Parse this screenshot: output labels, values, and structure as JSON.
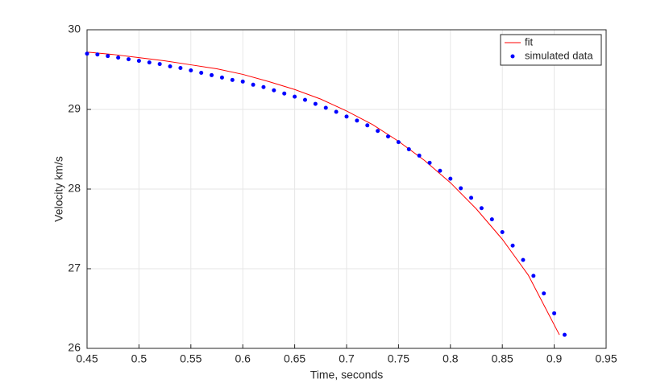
{
  "chart_data": {
    "type": "line-scatter",
    "xlabel": "Time, seconds",
    "ylabel": "Velocity km/s",
    "xlim": [
      0.45,
      0.95
    ],
    "ylim": [
      26,
      30
    ],
    "xticks": [
      0.45,
      0.5,
      0.55,
      0.6,
      0.65,
      0.7,
      0.75,
      0.8,
      0.85,
      0.9,
      0.95
    ],
    "yticks": [
      26,
      27,
      28,
      29,
      30
    ],
    "grid": true,
    "legend": "top-right",
    "series": [
      {
        "name": "fit",
        "kind": "line",
        "color": "#ff0000",
        "x": [
          0.45,
          0.475,
          0.5,
          0.525,
          0.55,
          0.575,
          0.6,
          0.625,
          0.65,
          0.675,
          0.7,
          0.725,
          0.75,
          0.775,
          0.8,
          0.825,
          0.85,
          0.875,
          0.905
        ],
        "values": [
          29.72,
          29.69,
          29.65,
          29.61,
          29.56,
          29.51,
          29.44,
          29.35,
          29.25,
          29.13,
          28.98,
          28.81,
          28.6,
          28.36,
          28.08,
          27.75,
          27.37,
          26.92,
          26.17
        ]
      },
      {
        "name": "simulated data",
        "kind": "scatter",
        "color": "#0000ff",
        "x": [
          0.45,
          0.46,
          0.47,
          0.48,
          0.49,
          0.5,
          0.51,
          0.52,
          0.53,
          0.54,
          0.55,
          0.56,
          0.57,
          0.58,
          0.59,
          0.6,
          0.61,
          0.62,
          0.63,
          0.64,
          0.65,
          0.66,
          0.67,
          0.68,
          0.69,
          0.7,
          0.71,
          0.72,
          0.73,
          0.74,
          0.75,
          0.76,
          0.77,
          0.78,
          0.79,
          0.8,
          0.81,
          0.82,
          0.83,
          0.84,
          0.85,
          0.86,
          0.87,
          0.88,
          0.89,
          0.9,
          0.91
        ],
        "values": [
          29.7,
          29.69,
          29.67,
          29.65,
          29.63,
          29.61,
          29.59,
          29.57,
          29.54,
          29.52,
          29.49,
          29.46,
          29.43,
          29.4,
          29.37,
          29.35,
          29.31,
          29.28,
          29.24,
          29.2,
          29.16,
          29.12,
          29.07,
          29.02,
          28.97,
          28.91,
          28.86,
          28.8,
          28.73,
          28.66,
          28.59,
          28.5,
          28.42,
          28.33,
          28.23,
          28.13,
          28.01,
          27.89,
          27.76,
          27.62,
          27.46,
          27.29,
          27.11,
          26.91,
          26.69,
          26.44,
          26.17
        ]
      }
    ]
  }
}
